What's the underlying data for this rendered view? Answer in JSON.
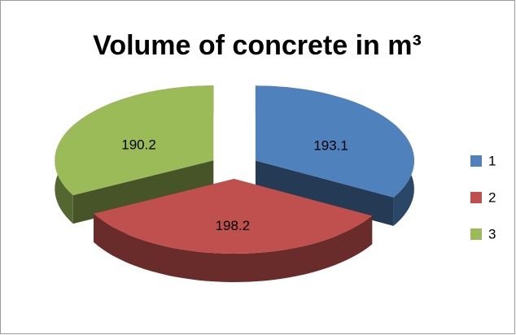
{
  "chart_data": {
    "type": "pie",
    "title": "Volume of concrete in m³",
    "categories": [
      "1",
      "2",
      "3"
    ],
    "values": [
      193.1,
      198.2,
      190.2
    ],
    "colors": [
      "#4f81bd",
      "#c0504d",
      "#9bbb59"
    ],
    "legend": "right",
    "three_d": true,
    "exploded": true
  }
}
